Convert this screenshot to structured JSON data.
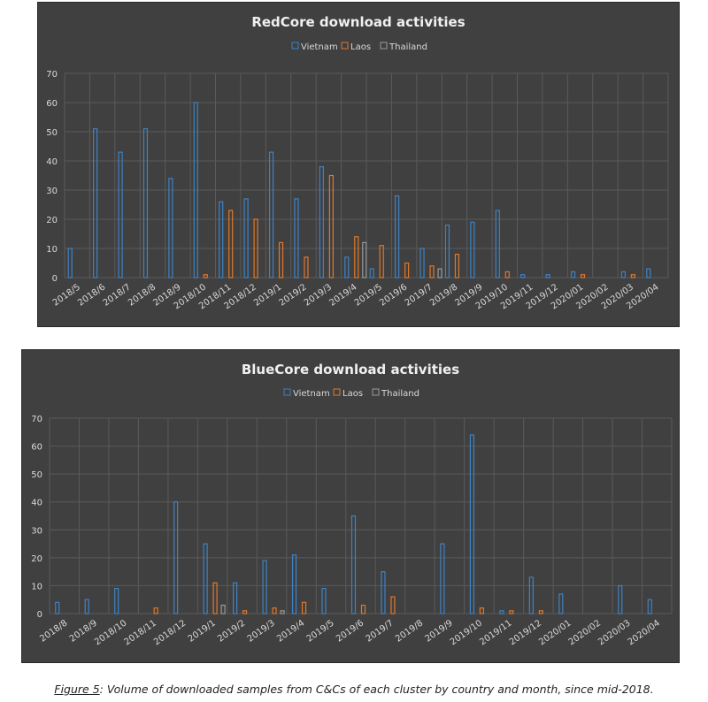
{
  "colors": {
    "Vietnam": "#3d82c4",
    "Laos": "#e0782a",
    "Thailand": "#9a9a9a",
    "background": "#404040",
    "gridline": "#5a5a5a",
    "text": "#d9d9d9"
  },
  "caption": {
    "figure_label": "Figure 5",
    "text": ": Volume of downloaded samples from C&Cs of each cluster by country and month, since mid-2018."
  },
  "chart_data": [
    {
      "type": "bar",
      "title": "RedCore download activities",
      "xlabel": "",
      "ylabel": "",
      "ylim": [
        0,
        70
      ],
      "yticks": [
        0,
        10,
        20,
        30,
        40,
        50,
        60,
        70
      ],
      "grid": "vertical",
      "legend": "top",
      "categories": [
        "2018/5",
        "2018/6",
        "2018/7",
        "2018/8",
        "2018/9",
        "2018/10",
        "2018/11",
        "2018/12",
        "2019/1",
        "2019/2",
        "2019/3",
        "2019/4",
        "2019/5",
        "2019/6",
        "2019/7",
        "2019/8",
        "2019/9",
        "2019/10",
        "2019/11",
        "2019/12",
        "2020/01",
        "2020/02",
        "2020/03",
        "2020/04"
      ],
      "series": [
        {
          "name": "Vietnam",
          "values": [
            10,
            51,
            43,
            51,
            34,
            60,
            26,
            27,
            43,
            27,
            38,
            7,
            3,
            28,
            10,
            18,
            19,
            23,
            1,
            1,
            2,
            0,
            2,
            3
          ]
        },
        {
          "name": "Laos",
          "values": [
            0,
            0,
            0,
            0,
            0,
            1,
            23,
            20,
            12,
            7,
            35,
            14,
            11,
            5,
            4,
            8,
            0,
            2,
            0,
            0,
            1,
            0,
            1,
            0
          ]
        },
        {
          "name": "Thailand",
          "values": [
            0,
            0,
            0,
            0,
            0,
            0,
            0,
            0,
            0,
            0,
            0,
            12,
            0,
            0,
            3,
            0,
            0,
            0,
            0,
            0,
            0,
            0,
            0,
            0
          ]
        }
      ]
    },
    {
      "type": "bar",
      "title": "BlueCore download activities",
      "xlabel": "",
      "ylabel": "",
      "ylim": [
        0,
        70
      ],
      "yticks": [
        0,
        10,
        20,
        30,
        40,
        50,
        60,
        70
      ],
      "grid": "vertical",
      "legend": "top",
      "categories": [
        "2018/8",
        "2018/9",
        "2018/10",
        "2018/11",
        "2018/12",
        "2019/1",
        "2019/2",
        "2019/3",
        "2019/4",
        "2019/5",
        "2019/6",
        "2019/7",
        "2019/8",
        "2019/9",
        "2019/10",
        "2019/11",
        "2019/12",
        "2020/01",
        "2020/02",
        "2020/03",
        "2020/04"
      ],
      "series": [
        {
          "name": "Vietnam",
          "values": [
            4,
            5,
            9,
            0,
            40,
            25,
            11,
            19,
            21,
            9,
            35,
            15,
            0,
            25,
            64,
            1,
            13,
            7,
            0,
            10,
            5
          ]
        },
        {
          "name": "Laos",
          "values": [
            0,
            0,
            0,
            2,
            0,
            11,
            1,
            2,
            4,
            0,
            3,
            6,
            0,
            0,
            2,
            1,
            1,
            0,
            0,
            0,
            0
          ]
        },
        {
          "name": "Thailand",
          "values": [
            0,
            0,
            0,
            0,
            0,
            3,
            0,
            1,
            0,
            0,
            0,
            0,
            0,
            0,
            0,
            0,
            0,
            0,
            0,
            0,
            0
          ]
        }
      ]
    }
  ]
}
